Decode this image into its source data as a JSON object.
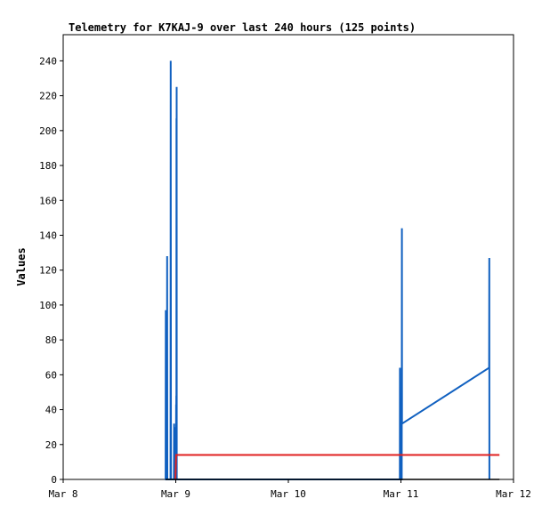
{
  "chart_data": {
    "type": "line",
    "title": "Telemetry for K7KAJ-9 over last 240 hours (125 points)",
    "xlabel": "",
    "ylabel": "Values",
    "xlim": [
      "2024-03-08T00:00",
      "2024-03-12T00:00"
    ],
    "ylim": [
      0,
      255
    ],
    "x_ticks": [
      {
        "x": "2024-03-08T00:00",
        "label": "Mar 8"
      },
      {
        "x": "2024-03-09T00:00",
        "label": "Mar 9"
      },
      {
        "x": "2024-03-10T00:00",
        "label": "Mar 10"
      },
      {
        "x": "2024-03-11T00:00",
        "label": "Mar 11"
      },
      {
        "x": "2024-03-12T00:00",
        "label": "Mar 12"
      }
    ],
    "y_ticks": [
      0,
      20,
      40,
      60,
      80,
      100,
      120,
      140,
      160,
      180,
      200,
      220,
      240
    ],
    "grid": false,
    "series": [
      {
        "color": "#1060c0",
        "points": [
          [
            "2024-03-08T21:50",
            0
          ],
          [
            "2024-03-08T21:53",
            97
          ],
          [
            "2024-03-08T21:55",
            0
          ],
          [
            "2024-03-08T22:07",
            0
          ],
          [
            "2024-03-08T22:10",
            128
          ],
          [
            "2024-03-08T22:12",
            0
          ],
          [
            "2024-03-08T22:53",
            0
          ],
          [
            "2024-03-08T22:55",
            240
          ],
          [
            "2024-03-08T22:58",
            0
          ],
          [
            "2024-03-08T23:36",
            0
          ],
          [
            "2024-03-08T23:38",
            32
          ],
          [
            "2024-03-08T23:40",
            0
          ],
          [
            "2024-03-09T00:00",
            0
          ],
          [
            "2024-03-09T00:01",
            30
          ],
          [
            "2024-03-09T00:02",
            0
          ],
          [
            "2024-03-09T00:04",
            43
          ],
          [
            "2024-03-09T00:05",
            0
          ],
          [
            "2024-03-09T00:07",
            48
          ],
          [
            "2024-03-09T00:08",
            0
          ],
          [
            "2024-03-09T00:09",
            207
          ],
          [
            "2024-03-09T00:10",
            0
          ],
          [
            "2024-03-09T00:11",
            225
          ],
          [
            "2024-03-09T00:12",
            0
          ],
          [
            "2024-03-10T23:46",
            0
          ],
          [
            "2024-03-10T23:48",
            64
          ],
          [
            "2024-03-10T23:50",
            0
          ],
          [
            "2024-03-11T00:10",
            0
          ],
          [
            "2024-03-11T00:12",
            144
          ],
          [
            "2024-03-11T00:14",
            32
          ],
          [
            "2024-03-11T18:48",
            64
          ],
          [
            "2024-03-11T18:50",
            127
          ],
          [
            "2024-03-11T18:52",
            0
          ]
        ]
      },
      {
        "color": "#e02020",
        "points": [
          [
            "2024-03-08T23:55",
            0
          ],
          [
            "2024-03-09T00:05",
            14
          ],
          [
            "2024-03-11T21:00",
            14
          ]
        ]
      },
      {
        "color": "#000000",
        "points": [
          [
            "2024-03-08T21:48",
            0
          ],
          [
            "2024-03-11T21:00",
            0
          ]
        ]
      }
    ]
  }
}
